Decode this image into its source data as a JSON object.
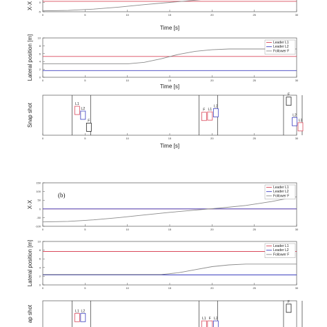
{
  "colors": {
    "leader_l1": "#d9485a",
    "leader_l2": "#3b3fbf",
    "follower_f": "#8a8a8a",
    "snapshot_l1": "#d9485a",
    "snapshot_l2": "#3b3fbf",
    "snapshot_f": "#222222"
  },
  "chart_data": [
    {
      "id": "a1",
      "type": "line",
      "title": "",
      "xlabel": "Time [s]",
      "ylabel": "X-X",
      "xlim": [
        0,
        30
      ],
      "ylim": [
        -5,
        5
      ],
      "xticks": [
        "0",
        "5",
        "10",
        "15",
        "20",
        "25",
        "30"
      ],
      "yticks": [
        "0",
        "-5"
      ],
      "series": [
        {
          "name": "Leader L1",
          "color": "#d9485a",
          "x": [
            0,
            30
          ],
          "y": [
            0.6,
            0.6
          ]
        },
        {
          "name": "Leader L2",
          "color": "#3b3fbf",
          "x": [
            0,
            30
          ],
          "y": [
            3.3,
            3.3
          ]
        },
        {
          "name": "Follower F",
          "color": "#8a8a8a",
          "x": [
            0,
            3,
            6,
            9,
            12,
            15,
            18,
            20,
            24,
            30
          ],
          "y": [
            -4.5,
            -4.3,
            -3.6,
            -2.5,
            -1.2,
            0.0,
            1.2,
            2.0,
            3.2,
            4.5
          ]
        }
      ]
    },
    {
      "id": "a2",
      "type": "line",
      "title": "",
      "xlabel": "Time [s]",
      "ylabel": "Lateral position [m]",
      "xlim": [
        0,
        30
      ],
      "ylim": [
        0,
        10
      ],
      "xticks": [
        "0",
        "5",
        "10",
        "15",
        "20",
        "25",
        "30"
      ],
      "yticks": [
        "10",
        "8",
        "6",
        "4",
        "2",
        "0"
      ],
      "legend": [
        "Leader L1",
        "Leader L2",
        "Follower F"
      ],
      "legend_position": "top-right",
      "series": [
        {
          "name": "Leader L1",
          "color": "#d9485a",
          "x": [
            0,
            30
          ],
          "y": [
            5.3,
            5.3
          ]
        },
        {
          "name": "Leader L2",
          "color": "#3b3fbf",
          "x": [
            0,
            30
          ],
          "y": [
            1.7,
            1.7
          ]
        },
        {
          "name": "Follower F",
          "color": "#8a8a8a",
          "x": [
            0,
            10,
            12,
            14,
            16,
            18,
            20,
            22,
            30
          ],
          "y": [
            3.4,
            3.4,
            3.8,
            4.7,
            5.8,
            6.6,
            7.0,
            7.2,
            7.2
          ]
        }
      ]
    },
    {
      "id": "a3",
      "type": "snapshot",
      "title": "",
      "xlabel": "Time [s]",
      "ylabel": "Snap shot",
      "xlim": [
        0,
        30
      ],
      "xticks": [
        "0",
        "5",
        "10",
        "15",
        "20",
        "25",
        "30"
      ],
      "frames": [
        {
          "t": 5,
          "cars": [
            {
              "label": "L1",
              "y": 0.38,
              "color": "#d9485a"
            },
            {
              "label": "L2",
              "y": 0.5,
              "color": "#3b3fbf"
            },
            {
              "label": "F",
              "y": 0.8,
              "color": "#222222"
            }
          ]
        },
        {
          "t": 20,
          "cars": [
            {
              "label": "F",
              "y": 0.53,
              "color": "#d9485a"
            },
            {
              "label": "L1",
              "y": 0.52,
              "color": "#d9485a"
            },
            {
              "label": "L2",
              "y": 0.44,
              "color": "#3b3fbf"
            }
          ]
        },
        {
          "t": 30,
          "cars": [
            {
              "label": "F",
              "y": 0.15,
              "color": "#222222"
            },
            {
              "label": "L2",
              "y": 0.66,
              "color": "#3b3fbf"
            },
            {
              "label": "L1",
              "y": 0.79,
              "color": "#d9485a"
            }
          ]
        }
      ]
    },
    {
      "id": "b1",
      "type": "line",
      "panel_label": "(b)",
      "title": "",
      "xlabel": "",
      "ylabel": "X-X",
      "xlim": [
        0,
        30
      ],
      "ylim": [
        -100,
        150
      ],
      "xticks": [
        "0",
        "5",
        "10",
        "15",
        "20",
        "25",
        "30"
      ],
      "yticks": [
        "150",
        "100",
        "50",
        "0",
        "-50",
        "-100"
      ],
      "legend": [
        "Leader L1",
        "Leader L2",
        "Follower F"
      ],
      "legend_position": "top-right",
      "series": [
        {
          "name": "Leader L1",
          "color": "#d9485a",
          "x": [
            0,
            30
          ],
          "y": [
            0,
            0
          ]
        },
        {
          "name": "Leader L2",
          "color": "#3b3fbf",
          "x": [
            0,
            30
          ],
          "y": [
            0,
            0
          ]
        },
        {
          "name": "Follower F",
          "color": "#8a8a8a",
          "x": [
            0,
            3,
            6,
            9,
            12,
            15,
            18,
            21,
            24,
            27,
            30
          ],
          "y": [
            -75,
            -72,
            -63,
            -50,
            -35,
            -20,
            -7,
            5,
            20,
            42,
            70
          ]
        }
      ]
    },
    {
      "id": "b2",
      "type": "line",
      "title": "",
      "xlabel": "",
      "ylabel": "Lateral position [m]",
      "xlim": [
        0,
        30
      ],
      "ylim": [
        0,
        10
      ],
      "xticks": [
        "0",
        "5",
        "10",
        "15",
        "20",
        "25",
        "30"
      ],
      "yticks": [
        "10",
        "8",
        "6",
        "4",
        "2",
        "0"
      ],
      "legend": [
        "Leader L1",
        "Leader L2",
        "Follower F"
      ],
      "legend_position": "top-right",
      "series": [
        {
          "name": "Leader L1",
          "color": "#d9485a",
          "x": [
            0,
            30
          ],
          "y": [
            7.7,
            7.7
          ]
        },
        {
          "name": "Leader L2",
          "color": "#3b3fbf",
          "x": [
            0,
            30
          ],
          "y": [
            2.3,
            2.3
          ]
        },
        {
          "name": "Follower F",
          "color": "#8a8a8a",
          "x": [
            0,
            14,
            16,
            18,
            20,
            22,
            24,
            30
          ],
          "y": [
            2.4,
            2.4,
            2.8,
            3.5,
            4.2,
            4.6,
            4.8,
            4.8
          ]
        }
      ]
    },
    {
      "id": "b3",
      "type": "snapshot",
      "title": "",
      "xlabel": "",
      "ylabel": "ap shot",
      "xlim": [
        0,
        30
      ],
      "frames": [
        {
          "t": 5,
          "cars": [
            {
              "label": "L1",
              "y": 0.45,
              "color": "#d9485a"
            },
            {
              "label": "L2",
              "y": 0.45,
              "color": "#3b3fbf"
            }
          ]
        },
        {
          "t": 20,
          "cars": [
            {
              "label": "L1",
              "y": 0.65,
              "color": "#d9485a"
            },
            {
              "label": "F",
              "y": 0.65,
              "color": "#d9485a"
            },
            {
              "label": "L2",
              "y": 0.65,
              "color": "#3b3fbf"
            }
          ]
        },
        {
          "t": 30,
          "cars": [
            {
              "label": "F",
              "y": 0.2,
              "color": "#222222"
            }
          ]
        }
      ]
    }
  ]
}
